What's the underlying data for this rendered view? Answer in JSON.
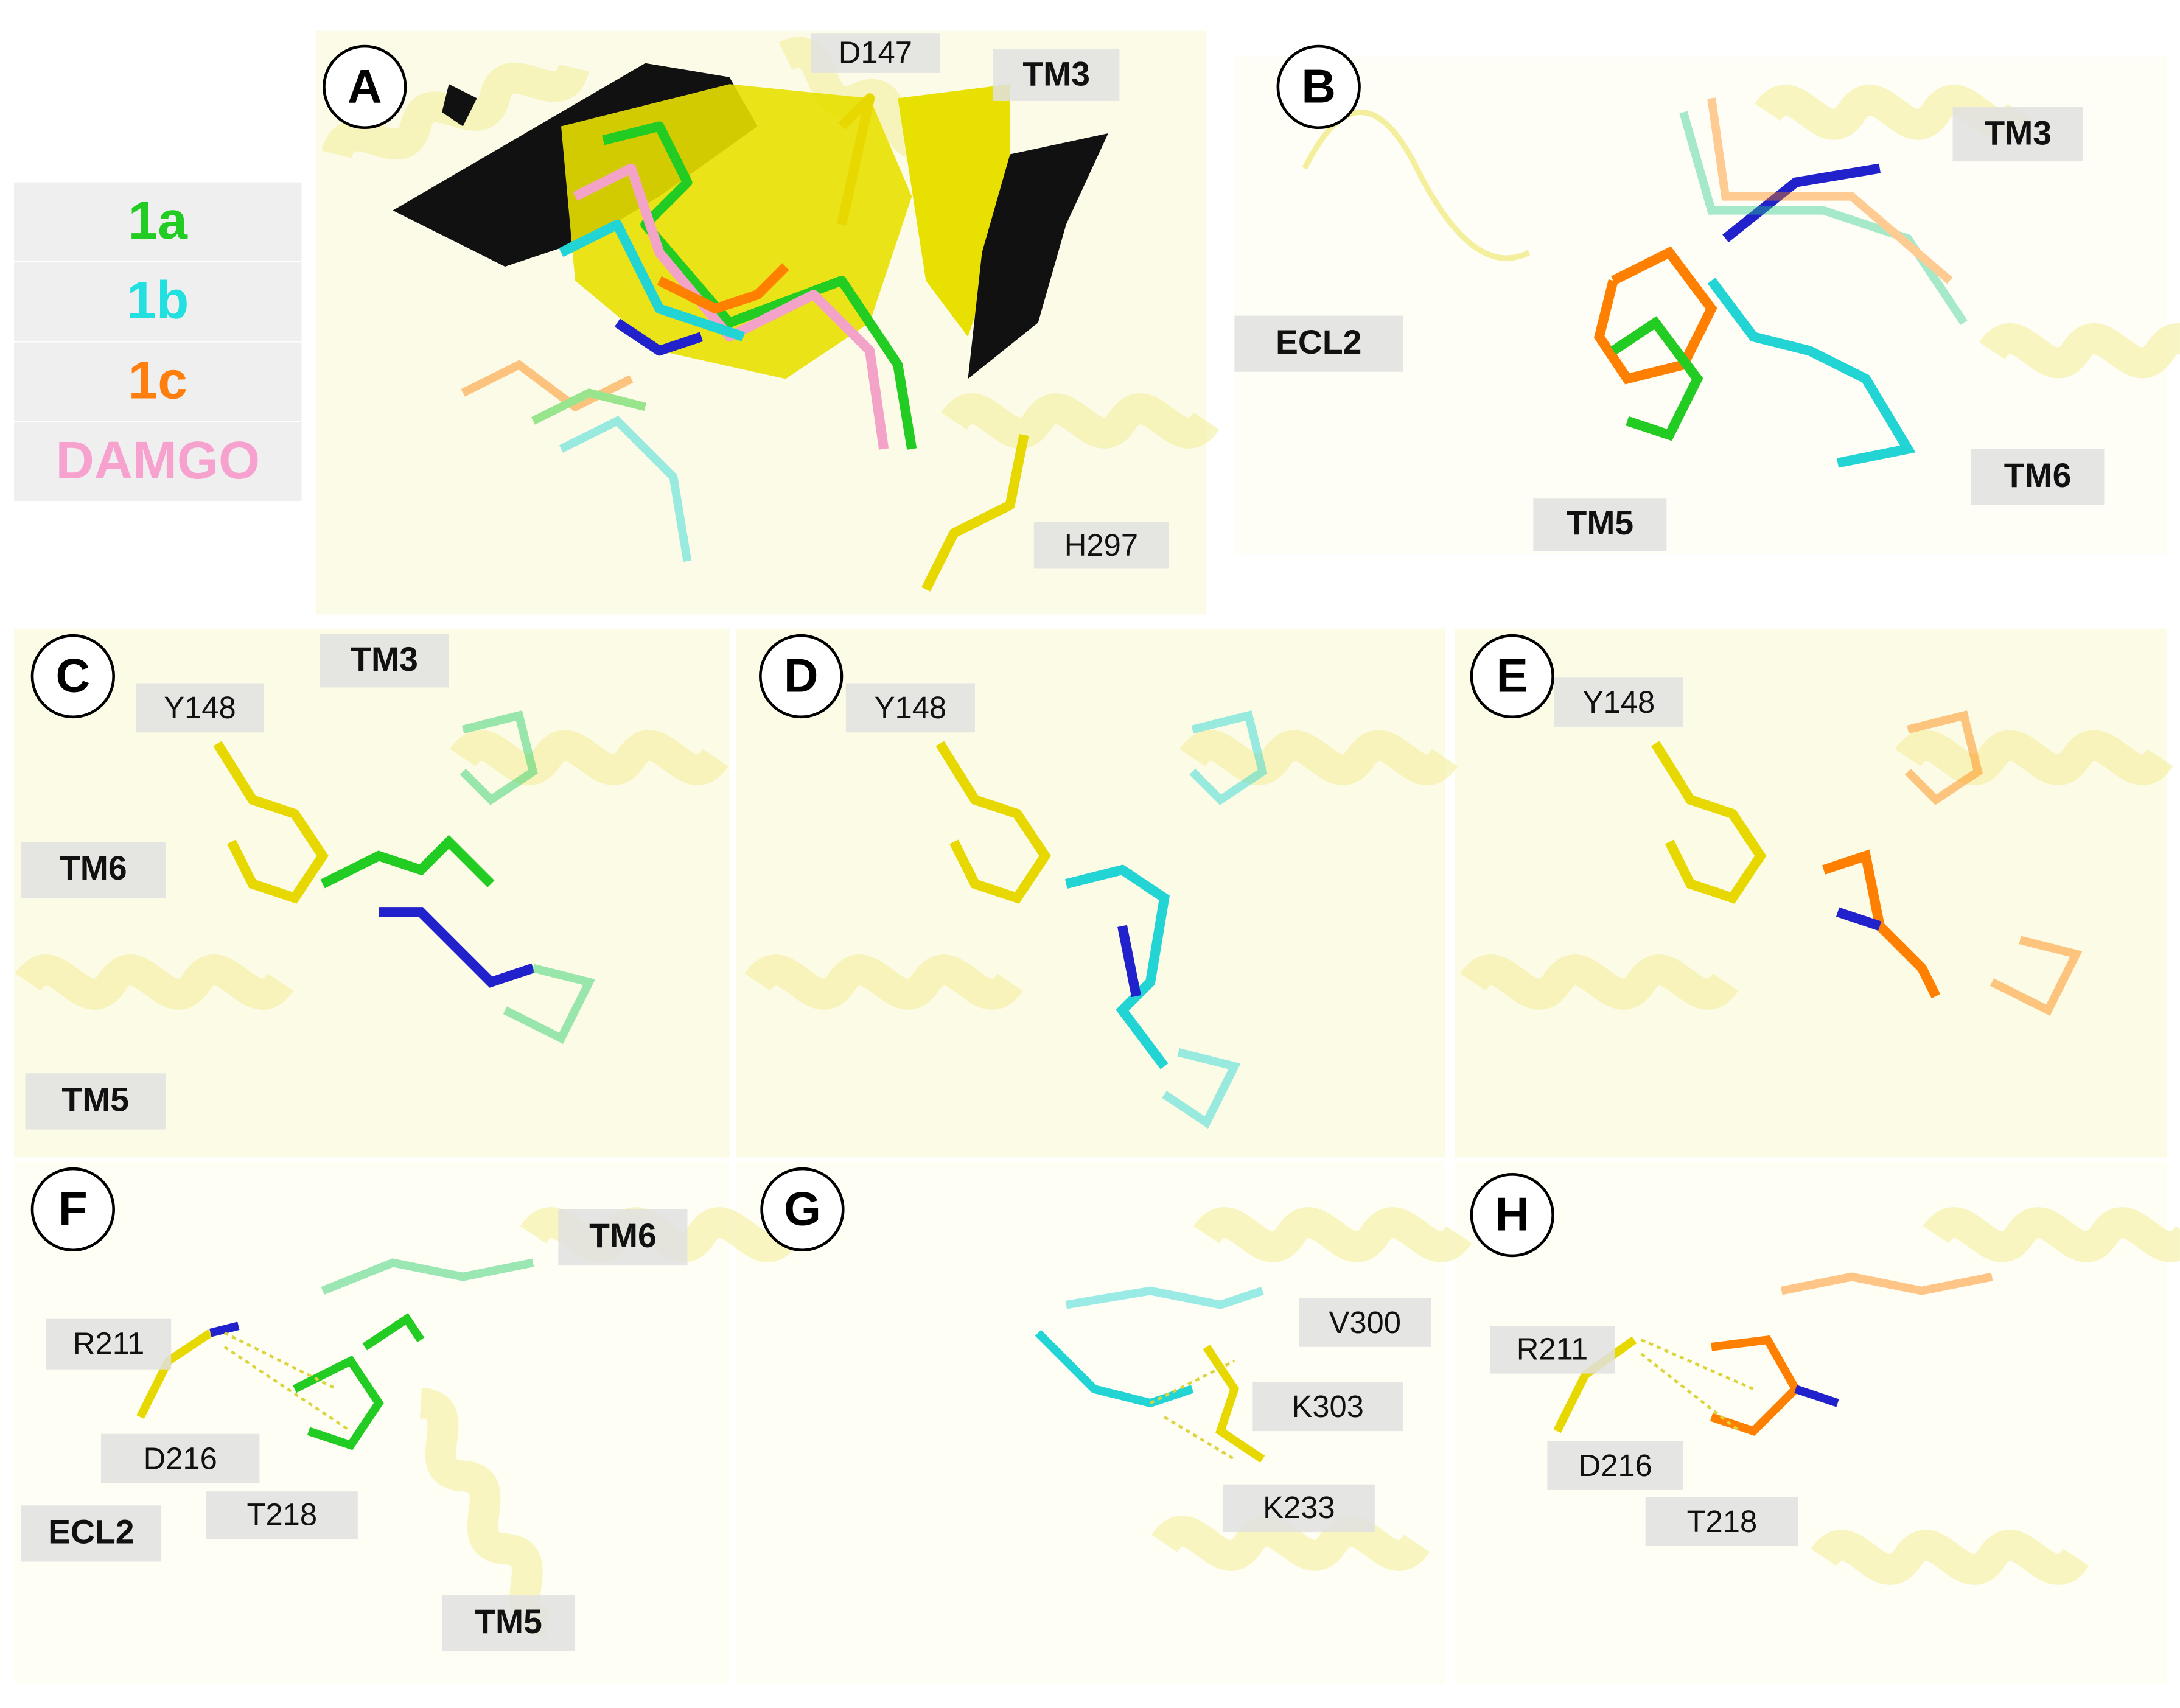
{
  "legend": {
    "items": [
      "1a",
      "1b",
      "1c",
      "DAMGO"
    ]
  },
  "panels": [
    {
      "label": "A",
      "annotations": [
        "D147",
        "TM3",
        "H297"
      ]
    },
    {
      "label": "B",
      "annotations": [
        "TM3",
        "ECL2",
        "TM6",
        "TM5"
      ]
    },
    {
      "label": "C",
      "annotations": [
        "TM3",
        "Y148",
        "TM6",
        "TM5"
      ]
    },
    {
      "label": "D",
      "annotations": [
        "Y148"
      ]
    },
    {
      "label": "E",
      "annotations": [
        "Y148"
      ]
    },
    {
      "label": "F",
      "annotations": [
        "TM6",
        "R211",
        "D216",
        "ECL2",
        "T218",
        "TM5"
      ]
    },
    {
      "label": "G",
      "annotations": [
        "V300",
        "K303",
        "K233"
      ]
    },
    {
      "label": "H",
      "annotations": [
        "R211",
        "D216",
        "T218"
      ]
    }
  ]
}
